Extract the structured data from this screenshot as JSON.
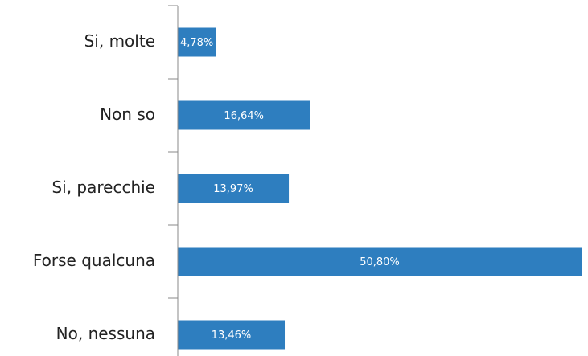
{
  "chart_data": {
    "type": "bar",
    "orientation": "horizontal",
    "categories": [
      "Si, molte",
      "Non so",
      "Si, parecchie",
      "Forse qualcuna",
      "No, nessuna"
    ],
    "values": [
      4.78,
      16.64,
      13.97,
      50.8,
      13.46
    ],
    "value_labels": [
      "4,78%",
      "16,64%",
      "13,97%",
      "50,80%",
      "13,46%"
    ],
    "color": "#2e7ebf"
  }
}
